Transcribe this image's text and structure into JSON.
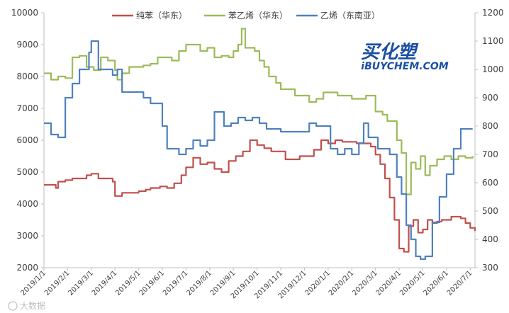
{
  "chart_data": {
    "type": "line",
    "left_axis": {
      "ylim": [
        2000,
        10000
      ],
      "ticks": [
        2000,
        3000,
        4000,
        5000,
        6000,
        7000,
        8000,
        9000,
        10000
      ]
    },
    "right_axis": {
      "ylim": [
        300,
        1200
      ],
      "ticks": [
        300,
        400,
        500,
        600,
        700,
        800,
        900,
        1000,
        1100,
        1200
      ]
    },
    "x_ticks": [
      "2019/1/1",
      "2019/2/1",
      "2019/3/1",
      "2019/4/1",
      "2019/5/1",
      "2019/6/1",
      "2019/7/1",
      "2019/8/1",
      "2019/9/1",
      "2019/10/1",
      "2019/11/1",
      "2019/12/1",
      "2020/1/1",
      "2020/2/1",
      "2020/3/1",
      "2020/4/1",
      "2020/5/1",
      "2020/6/1",
      "2020/7/1"
    ],
    "x_tick_months": [
      0,
      1,
      2,
      3,
      4,
      5,
      6,
      7,
      8,
      9,
      10,
      11,
      12,
      13,
      14,
      15,
      16,
      17,
      18
    ],
    "x_range_months": [
      0,
      18.2
    ],
    "grid": false,
    "legend_position": "top",
    "series": [
      {
        "name": "纯苯（华东）",
        "axis": "left",
        "color": "#c0504d",
        "x": [
          0,
          0.5,
          0.6,
          0.9,
          1.2,
          1.5,
          1.8,
          2.0,
          2.3,
          2.6,
          2.9,
          3.0,
          3.3,
          3.6,
          4.0,
          4.3,
          4.5,
          4.9,
          5.2,
          5.5,
          5.8,
          6.0,
          6.3,
          6.6,
          6.9,
          7.2,
          7.5,
          7.8,
          8.1,
          8.4,
          8.7,
          9.0,
          9.3,
          9.6,
          9.9,
          10.2,
          10.5,
          10.8,
          11.1,
          11.4,
          11.7,
          12.0,
          12.3,
          12.6,
          12.9,
          13.2,
          13.5,
          13.8,
          14.0,
          14.2,
          14.4,
          14.6,
          14.8,
          15.0,
          15.2,
          15.4,
          15.6,
          15.8,
          16.0,
          16.2,
          16.4,
          16.6,
          16.8,
          17.0,
          17.2,
          17.4,
          17.6,
          17.8,
          18.0,
          18.2
        ],
        "values": [
          4600,
          4500,
          4700,
          4750,
          4800,
          4800,
          4900,
          4950,
          4800,
          4800,
          4700,
          4250,
          4350,
          4350,
          4400,
          4450,
          4500,
          4550,
          4500,
          4650,
          4900,
          5150,
          5450,
          5250,
          5300,
          5100,
          5000,
          5350,
          5500,
          5650,
          6000,
          5850,
          5750,
          5650,
          5650,
          5400,
          5400,
          5500,
          5500,
          5700,
          6000,
          5900,
          6000,
          5950,
          5950,
          5900,
          5900,
          5800,
          5550,
          5250,
          4800,
          4200,
          3500,
          2600,
          2500,
          3300,
          3500,
          3100,
          3200,
          3500,
          3400,
          3450,
          3500,
          3500,
          3600,
          3600,
          3550,
          3400,
          3250,
          3150
        ]
      },
      {
        "name": "苯乙烯（华东）",
        "axis": "left",
        "color": "#9bbb59",
        "x": [
          0,
          0.3,
          0.6,
          0.9,
          1.2,
          1.5,
          1.8,
          2.1,
          2.4,
          2.7,
          3.0,
          3.1,
          3.3,
          3.6,
          3.9,
          4.2,
          4.5,
          4.8,
          5.1,
          5.4,
          5.7,
          6.0,
          6.3,
          6.6,
          6.9,
          7.2,
          7.5,
          7.8,
          8.0,
          8.2,
          8.35,
          8.5,
          8.7,
          8.9,
          9.1,
          9.3,
          9.5,
          9.8,
          10.0,
          10.3,
          10.6,
          10.9,
          11.2,
          11.5,
          11.8,
          12.1,
          12.4,
          12.7,
          13.0,
          13.3,
          13.6,
          13.8,
          14.0,
          14.3,
          14.5,
          14.7,
          14.9,
          15.1,
          15.3,
          15.5,
          15.7,
          15.9,
          16.1,
          16.3,
          16.6,
          16.9,
          17.2,
          17.5,
          17.8,
          18.1
        ],
        "values": [
          8100,
          7900,
          8000,
          7950,
          8600,
          8650,
          8300,
          8200,
          8600,
          8500,
          8200,
          7900,
          8100,
          8300,
          8300,
          8350,
          8400,
          8600,
          8600,
          8500,
          8800,
          9000,
          9000,
          8800,
          8900,
          8600,
          8650,
          8600,
          8800,
          9000,
          9500,
          8900,
          8900,
          8800,
          8500,
          8300,
          8000,
          7800,
          7600,
          7600,
          7400,
          7400,
          7200,
          7300,
          7500,
          7500,
          7400,
          7400,
          7300,
          7300,
          7400,
          7400,
          6900,
          6800,
          6600,
          6600,
          6000,
          5600,
          4300,
          5300,
          5100,
          5500,
          4900,
          5200,
          5400,
          5500,
          5400,
          5500,
          5450,
          5500
        ]
      },
      {
        "name": "乙烯（东南亚）",
        "axis": "right",
        "color": "#4f81bd",
        "x": [
          0,
          0.3,
          0.6,
          0.9,
          1.2,
          1.5,
          1.7,
          1.9,
          2.0,
          2.1,
          2.2,
          2.3,
          2.6,
          2.9,
          3.1,
          3.3,
          3.6,
          3.9,
          4.2,
          4.5,
          4.8,
          5.0,
          5.2,
          5.4,
          5.7,
          6.0,
          6.3,
          6.6,
          6.9,
          7.2,
          7.3,
          7.6,
          7.9,
          8.2,
          8.5,
          8.8,
          9.1,
          9.4,
          9.7,
          10.0,
          10.3,
          10.6,
          10.9,
          11.2,
          11.5,
          11.8,
          12.1,
          12.4,
          12.7,
          13.0,
          13.3,
          13.5,
          13.7,
          13.9,
          14.1,
          14.3,
          14.6,
          14.9,
          15.1,
          15.3,
          15.5,
          15.7,
          15.9,
          16.1,
          16.4,
          16.7,
          17.0,
          17.3,
          17.6,
          17.9,
          18.1
        ],
        "values": [
          810,
          770,
          760,
          900,
          950,
          1000,
          1000,
          1060,
          1100,
          1100,
          1100,
          1000,
          1000,
          980,
          1000,
          920,
          920,
          920,
          900,
          880,
          880,
          800,
          720,
          720,
          700,
          720,
          750,
          730,
          750,
          850,
          850,
          800,
          810,
          830,
          820,
          830,
          810,
          790,
          790,
          780,
          780,
          780,
          780,
          810,
          800,
          800,
          720,
          700,
          720,
          700,
          740,
          810,
          760,
          760,
          720,
          720,
          700,
          620,
          560,
          450,
          400,
          340,
          330,
          340,
          460,
          550,
          630,
          720,
          790,
          790,
          790
        ]
      }
    ]
  },
  "logo": {
    "main": "买化塑",
    "sub": "iBUYCHEM.COM"
  },
  "watermark": "大数据"
}
